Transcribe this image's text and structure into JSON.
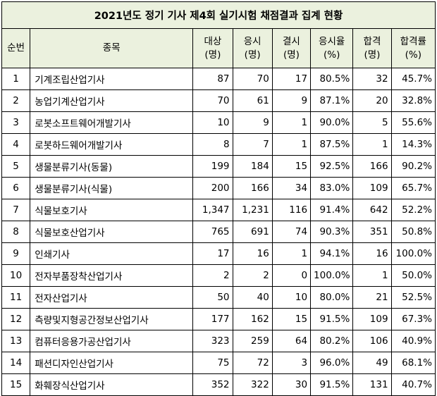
{
  "title": "2021년도 정기 기사 제4회 실기시험 채점결과 집계 현황",
  "headers": [
    [
      "순번"
    ],
    [
      "종목"
    ],
    [
      "대상",
      "(명)"
    ],
    [
      "응시",
      "(명)"
    ],
    [
      "결시",
      "(명)"
    ],
    [
      "응시율",
      "(%)"
    ],
    [
      "합격",
      "(명)"
    ],
    [
      "합격률",
      "(%)"
    ]
  ],
  "rows": [
    [
      "1",
      "기계조립산업기사",
      "87",
      "70",
      "17",
      "80.5%",
      "32",
      "45.7%"
    ],
    [
      "2",
      "농업기계산업기사",
      "70",
      "61",
      "9",
      "87.1%",
      "20",
      "32.8%"
    ],
    [
      "3",
      "로봇소프트웨어개발기사",
      "10",
      "9",
      "1",
      "90.0%",
      "5",
      "55.6%"
    ],
    [
      "4",
      "로봇하드웨어개발기사",
      "8",
      "7",
      "1",
      "87.5%",
      "1",
      "14.3%"
    ],
    [
      "5",
      "생물분류기사(동물)",
      "199",
      "184",
      "15",
      "92.5%",
      "166",
      "90.2%"
    ],
    [
      "6",
      "생물분류기사(식물)",
      "200",
      "166",
      "34",
      "83.0%",
      "109",
      "65.7%"
    ],
    [
      "7",
      "식물보호기사",
      "1,347",
      "1,231",
      "116",
      "91.4%",
      "642",
      "52.2%"
    ],
    [
      "8",
      "식물보호산업기사",
      "765",
      "691",
      "74",
      "90.3%",
      "351",
      "50.8%"
    ],
    [
      "9",
      "인쇄기사",
      "17",
      "16",
      "1",
      "94.1%",
      "16",
      "100.0%"
    ],
    [
      "10",
      "전자부품장착산업기사",
      "2",
      "2",
      "0",
      "100.0%",
      "1",
      "50.0%"
    ],
    [
      "11",
      "전자산업기사",
      "50",
      "40",
      "10",
      "80.0%",
      "21",
      "52.5%"
    ],
    [
      "12",
      "측량및지형공간정보산업기사",
      "177",
      "162",
      "15",
      "91.5%",
      "109",
      "67.3%"
    ],
    [
      "13",
      "컴퓨터응용가공산업기사",
      "323",
      "259",
      "64",
      "80.2%",
      "106",
      "40.9%"
    ],
    [
      "14",
      "패션디자인산업기사",
      "75",
      "72",
      "3",
      "96.0%",
      "49",
      "68.1%"
    ],
    [
      "15",
      "화훼장식산업기사",
      "352",
      "322",
      "30",
      "91.5%",
      "131",
      "40.7%"
    ]
  ],
  "colors": {
    "header_bg": "#ebf1de",
    "border": "#000000"
  }
}
